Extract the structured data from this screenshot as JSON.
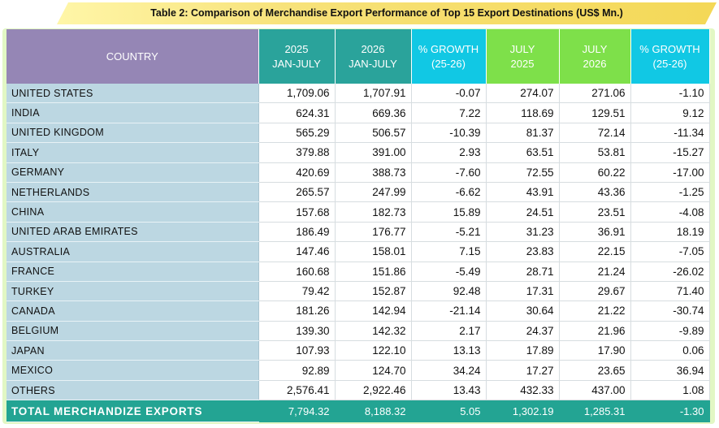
{
  "title": "Table 2: Comparison of Merchandise Export Performance of Top 15 Export Destinations (US$ Mn.)",
  "headers": {
    "country": "COUNTRY",
    "ytd2025": [
      "2025",
      "JAN-JULY"
    ],
    "ytd2026": [
      "2026",
      "JAN-JULY"
    ],
    "ytd_growth": [
      "% GROWTH",
      "(25-26)"
    ],
    "jul2025": [
      "JULY",
      "2025"
    ],
    "jul2026": [
      "JULY",
      "2026"
    ],
    "jul_growth": [
      "% GROWTH",
      "(25-26)"
    ]
  },
  "rows": [
    {
      "country": "UNITED STATES",
      "ytd2025": "1,709.06",
      "ytd2026": "1,707.91",
      "ytd_growth": "-0.07",
      "jul2025": "274.07",
      "jul2026": "271.06",
      "jul_growth": "-1.10"
    },
    {
      "country": "INDIA",
      "ytd2025": "624.31",
      "ytd2026": "669.36",
      "ytd_growth": "7.22",
      "jul2025": "118.69",
      "jul2026": "129.51",
      "jul_growth": "9.12"
    },
    {
      "country": "UNITED KINGDOM",
      "ytd2025": "565.29",
      "ytd2026": "506.57",
      "ytd_growth": "-10.39",
      "jul2025": "81.37",
      "jul2026": "72.14",
      "jul_growth": "-11.34"
    },
    {
      "country": "ITALY",
      "ytd2025": "379.88",
      "ytd2026": "391.00",
      "ytd_growth": "2.93",
      "jul2025": "63.51",
      "jul2026": "53.81",
      "jul_growth": "-15.27"
    },
    {
      "country": "GERMANY",
      "ytd2025": "420.69",
      "ytd2026": "388.73",
      "ytd_growth": "-7.60",
      "jul2025": "72.55",
      "jul2026": "60.22",
      "jul_growth": "-17.00"
    },
    {
      "country": "NETHERLANDS",
      "ytd2025": "265.57",
      "ytd2026": "247.99",
      "ytd_growth": "-6.62",
      "jul2025": "43.91",
      "jul2026": "43.36",
      "jul_growth": "-1.25"
    },
    {
      "country": "CHINA",
      "ytd2025": "157.68",
      "ytd2026": "182.73",
      "ytd_growth": "15.89",
      "jul2025": "24.51",
      "jul2026": "23.51",
      "jul_growth": "-4.08"
    },
    {
      "country": "UNITED ARAB EMIRATES",
      "ytd2025": "186.49",
      "ytd2026": "176.77",
      "ytd_growth": "-5.21",
      "jul2025": "31.23",
      "jul2026": "36.91",
      "jul_growth": "18.19"
    },
    {
      "country": "AUSTRALIA",
      "ytd2025": "147.46",
      "ytd2026": "158.01",
      "ytd_growth": "7.15",
      "jul2025": "23.83",
      "jul2026": "22.15",
      "jul_growth": "-7.05"
    },
    {
      "country": "FRANCE",
      "ytd2025": "160.68",
      "ytd2026": "151.86",
      "ytd_growth": "-5.49",
      "jul2025": "28.71",
      "jul2026": "21.24",
      "jul_growth": "-26.02"
    },
    {
      "country": "TURKEY",
      "ytd2025": "79.42",
      "ytd2026": "152.87",
      "ytd_growth": "92.48",
      "jul2025": "17.31",
      "jul2026": "29.67",
      "jul_growth": "71.40"
    },
    {
      "country": "CANADA",
      "ytd2025": "181.26",
      "ytd2026": "142.94",
      "ytd_growth": "-21.14",
      "jul2025": "30.64",
      "jul2026": "21.22",
      "jul_growth": "-30.74"
    },
    {
      "country": "BELGIUM",
      "ytd2025": "139.30",
      "ytd2026": "142.32",
      "ytd_growth": "2.17",
      "jul2025": "24.37",
      "jul2026": "21.96",
      "jul_growth": "-9.89"
    },
    {
      "country": "JAPAN",
      "ytd2025": "107.93",
      "ytd2026": "122.10",
      "ytd_growth": "13.13",
      "jul2025": "17.89",
      "jul2026": "17.90",
      "jul_growth": "0.06"
    },
    {
      "country": "MEXICO",
      "ytd2025": "92.89",
      "ytd2026": "124.70",
      "ytd_growth": "34.24",
      "jul2025": "17.27",
      "jul2026": "23.65",
      "jul_growth": "36.94"
    },
    {
      "country": "OTHERS",
      "ytd2025": "2,576.41",
      "ytd2026": "2,922.46",
      "ytd_growth": "13.43",
      "jul2025": "432.33",
      "jul2026": "437.00",
      "jul_growth": "1.08"
    }
  ],
  "total": {
    "country": "TOTAL  MERCHANDIZE EXPORTS",
    "ytd2025": "7,794.32",
    "ytd2026": "8,188.32",
    "ytd_growth": "5.05",
    "jul2025": "1,302.19",
    "jul2026": "1,285.31",
    "jul_growth": "-1.30"
  },
  "colors": {
    "title_banner": "#f4d857",
    "frame": "#e2f7c4",
    "country_header": "#9586b5",
    "ytd_header": "#2aa39b",
    "growth_header": "#11c8e4",
    "july_header": "#7ee04a",
    "country_cell": "#bcd7e2",
    "total_row": "#23a493"
  }
}
